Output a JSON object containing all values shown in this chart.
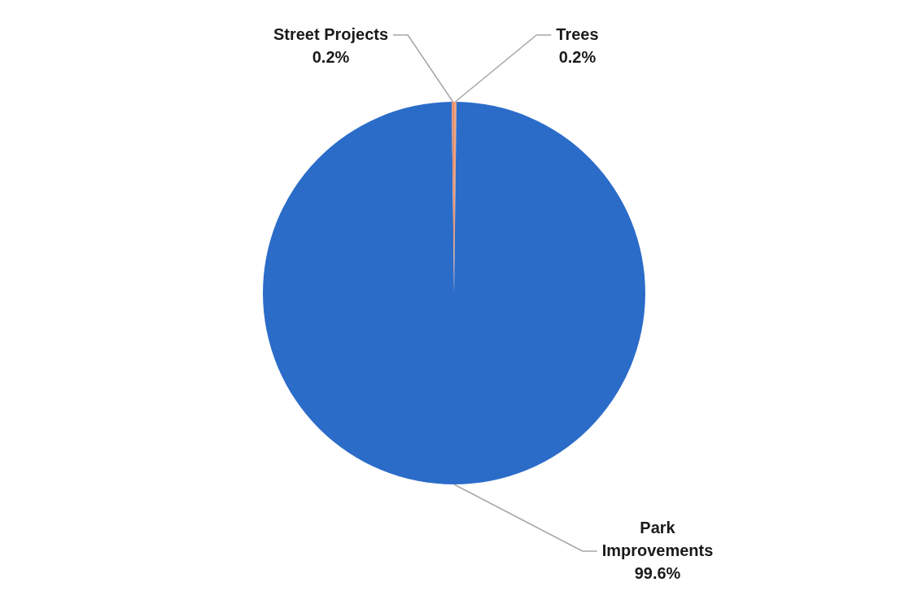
{
  "chart_data": {
    "type": "pie",
    "categories": [
      "Trees",
      "Park Improvements",
      "Street Projects"
    ],
    "values": [
      0.2,
      99.6,
      0.2
    ],
    "colors": [
      "#f0a47e",
      "#2b6cc9",
      "#e39172"
    ],
    "value_labels": [
      "0.2%",
      "99.6%",
      "0.2%"
    ]
  }
}
